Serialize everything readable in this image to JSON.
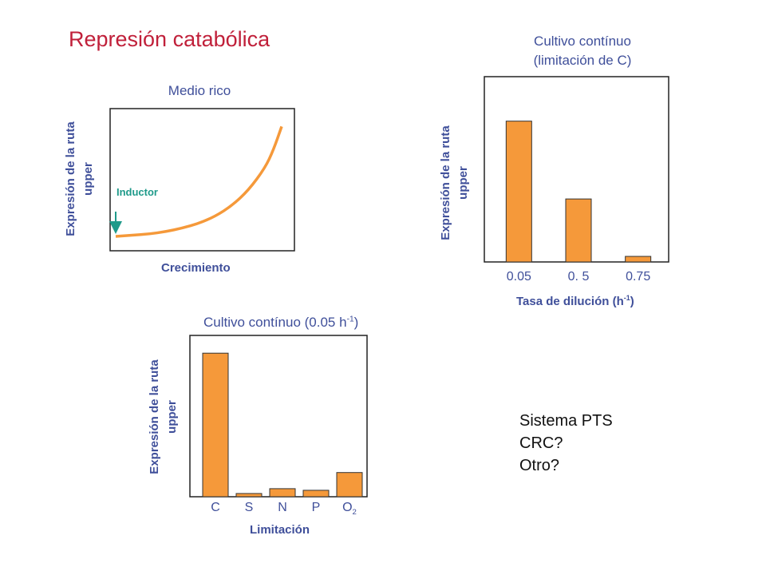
{
  "title": "Represión catabólica",
  "notes": [
    "Sistema PTS",
    "CRC?",
    "Otro?"
  ],
  "colors": {
    "bar": "#F5993A",
    "curve": "#F5993A",
    "arrow": "#1F9A8A",
    "text": "#3F4F9A",
    "title": "#C0203A"
  },
  "chart_data": [
    {
      "type": "line",
      "title": "Medio rico",
      "xlabel": "Crecimiento",
      "ylabel": "Expresión de la ruta upper",
      "ylabel_lines": [
        "Expresión de la ruta",
        "upper"
      ],
      "annotation": "Inductor",
      "x": [
        0,
        0.1,
        0.2,
        0.3,
        0.4,
        0.5,
        0.6,
        0.7,
        0.8,
        0.9,
        0.95,
        1.0
      ],
      "y": [
        0.0,
        0.01,
        0.02,
        0.04,
        0.07,
        0.11,
        0.17,
        0.26,
        0.39,
        0.58,
        0.73,
        0.93
      ],
      "xlim": [
        0,
        1
      ],
      "ylim": [
        0,
        1
      ]
    },
    {
      "type": "bar",
      "title_lines": [
        "Cultivo contínuo",
        "(limitación de C)"
      ],
      "xlabel_base": "Tasa de dilución (h",
      "xlabel_sup": "-1",
      "xlabel_end": ")",
      "ylabel": "Expresión de la ruta upper",
      "ylabel_lines": [
        "Expresión de la ruta",
        "upper"
      ],
      "categories": [
        "0.05",
        "0. 5",
        "0.75"
      ],
      "values": [
        0.76,
        0.34,
        0.03
      ],
      "ylim": [
        0,
        1
      ]
    },
    {
      "type": "bar",
      "title_base": "Cultivo contínuo (0.05 h",
      "title_sup": "-1",
      "title_end": ")",
      "xlabel": "Limitación",
      "ylabel": "Expresión de la ruta upper",
      "ylabel_lines": [
        "Expresión de la ruta",
        "upper"
      ],
      "categories": [
        "C",
        "S",
        "N",
        "P",
        "O"
      ],
      "category_subscripts": [
        "",
        "",
        "",
        "",
        "2"
      ],
      "values": [
        0.89,
        0.02,
        0.05,
        0.04,
        0.15
      ],
      "ylim": [
        0,
        1
      ]
    }
  ]
}
